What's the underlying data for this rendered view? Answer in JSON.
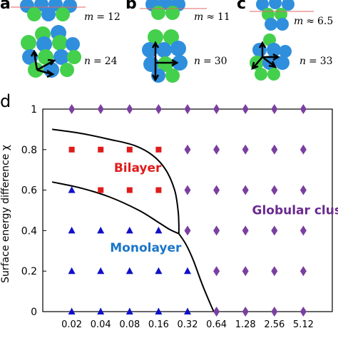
{
  "panels": {
    "a": {
      "label": "a",
      "m_name": "m",
      "m_rel": "=",
      "m_value": "12",
      "n_name": "n",
      "n_rel": "=",
      "n_value": "24"
    },
    "b": {
      "label": "b",
      "m_name": "m",
      "m_rel": "≈",
      "m_value": "11",
      "n_name": "n",
      "n_rel": "=",
      "n_value": "30"
    },
    "c": {
      "label": "c",
      "m_name": "m",
      "m_rel": "≈",
      "m_value": "6.5",
      "n_name": "n",
      "n_rel": "=",
      "n_value": "33"
    },
    "d": {
      "label": "d"
    }
  },
  "colors": {
    "sphere_blue": "#2f8fdc",
    "sphere_green": "#44d04c",
    "arrow": "#000000",
    "bilayer": "#e01b1b",
    "monolayer": "#1010c8",
    "globular": "#7a3fa0",
    "monolayer_text": "#1a75c9",
    "bilayer_text": "#e01b1b",
    "globular_text": "#6a2a8e"
  },
  "chart_data": {
    "type": "scatter",
    "ylabel": "Surface energy difference χ",
    "xlabel": "",
    "x_scale": "log2",
    "x_ticks": [
      "0.02",
      "0.04",
      "0.08",
      "0.16",
      "0.32",
      "0.64",
      "1.28",
      "2.56",
      "5.12"
    ],
    "x_tick_values": [
      0.02,
      0.04,
      0.08,
      0.16,
      0.32,
      0.64,
      1.28,
      2.56,
      5.12
    ],
    "y_ticks": [
      "0",
      "0.2",
      "0.4",
      "0.6",
      "0.8",
      "1"
    ],
    "y_tick_values": [
      0,
      0.2,
      0.4,
      0.6,
      0.8,
      1
    ],
    "xlim": [
      0.01,
      10.24
    ],
    "ylim": [
      0,
      1
    ],
    "series": [
      {
        "name": "Bilayer",
        "marker": "square",
        "points": [
          [
            0.02,
            0.8
          ],
          [
            0.04,
            0.8
          ],
          [
            0.08,
            0.8
          ],
          [
            0.16,
            0.8
          ],
          [
            0.04,
            0.6
          ],
          [
            0.08,
            0.6
          ],
          [
            0.16,
            0.6
          ]
        ]
      },
      {
        "name": "Monolayer",
        "marker": "triangle",
        "points": [
          [
            0.02,
            0.6
          ],
          [
            0.02,
            0.4
          ],
          [
            0.04,
            0.4
          ],
          [
            0.08,
            0.4
          ],
          [
            0.16,
            0.4
          ],
          [
            0.02,
            0.2
          ],
          [
            0.04,
            0.2
          ],
          [
            0.08,
            0.2
          ],
          [
            0.16,
            0.2
          ],
          [
            0.32,
            0.2
          ],
          [
            0.02,
            0.0
          ],
          [
            0.04,
            0.0
          ],
          [
            0.08,
            0.0
          ],
          [
            0.16,
            0.0
          ],
          [
            0.32,
            0.0
          ]
        ]
      },
      {
        "name": "Globular cluster",
        "marker": "diamond",
        "points": [
          [
            0.02,
            1
          ],
          [
            0.04,
            1
          ],
          [
            0.08,
            1
          ],
          [
            0.16,
            1
          ],
          [
            0.32,
            1
          ],
          [
            0.64,
            1
          ],
          [
            1.28,
            1
          ],
          [
            2.56,
            1
          ],
          [
            5.12,
            1
          ],
          [
            0.32,
            0.8
          ],
          [
            0.64,
            0.8
          ],
          [
            1.28,
            0.8
          ],
          [
            2.56,
            0.8
          ],
          [
            5.12,
            0.8
          ],
          [
            0.32,
            0.6
          ],
          [
            0.64,
            0.6
          ],
          [
            1.28,
            0.6
          ],
          [
            2.56,
            0.6
          ],
          [
            5.12,
            0.6
          ],
          [
            0.32,
            0.4
          ],
          [
            0.64,
            0.4
          ],
          [
            1.28,
            0.4
          ],
          [
            2.56,
            0.4
          ],
          [
            5.12,
            0.4
          ],
          [
            0.64,
            0.2
          ],
          [
            1.28,
            0.2
          ],
          [
            2.56,
            0.2
          ],
          [
            5.12,
            0.2
          ],
          [
            0.64,
            0.0
          ],
          [
            1.28,
            0.0
          ],
          [
            2.56,
            0.0
          ],
          [
            5.12,
            0.0
          ]
        ]
      }
    ],
    "region_labels": [
      {
        "text": "Bilayer",
        "x": 0.055,
        "y": 0.69,
        "color": "#e01b1b"
      },
      {
        "text": "Monolayer",
        "x": 0.05,
        "y": 0.295,
        "color": "#1a75c9"
      },
      {
        "text": "Globular cluster",
        "x": 1.5,
        "y": 0.48,
        "color": "#6a2a8e"
      }
    ],
    "boundaries": [
      {
        "name": "bilayer-globular-boundary",
        "points": [
          [
            0.0125,
            0.9
          ],
          [
            0.025,
            0.88
          ],
          [
            0.05,
            0.85
          ],
          [
            0.09,
            0.82
          ],
          [
            0.14,
            0.77
          ],
          [
            0.19,
            0.7
          ],
          [
            0.235,
            0.6
          ],
          [
            0.255,
            0.5
          ],
          [
            0.26,
            0.43
          ],
          [
            0.26,
            0.385
          ]
        ]
      },
      {
        "name": "monolayer-bilayer-boundary",
        "points": [
          [
            0.0125,
            0.64
          ],
          [
            0.025,
            0.61
          ],
          [
            0.05,
            0.565
          ],
          [
            0.1,
            0.5
          ],
          [
            0.16,
            0.44
          ],
          [
            0.21,
            0.405
          ],
          [
            0.26,
            0.385
          ]
        ]
      },
      {
        "name": "monolayer-globular-boundary",
        "points": [
          [
            0.26,
            0.385
          ],
          [
            0.31,
            0.33
          ],
          [
            0.37,
            0.25
          ],
          [
            0.45,
            0.14
          ],
          [
            0.55,
            0.04
          ],
          [
            0.6,
            0.0
          ]
        ]
      }
    ]
  }
}
